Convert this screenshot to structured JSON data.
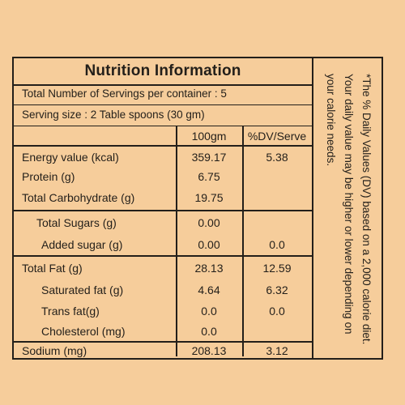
{
  "title": "Nutrition Information",
  "servings_line": "Total Number of Servings per container : 5",
  "serving_size_line": "Serving size :  2 Table spoons (30 gm)",
  "columns": {
    "per100": "100gm",
    "dv": "%DV/Serve"
  },
  "rows": [
    {
      "label": "Energy value (kcal)",
      "per100": "359.17",
      "dv": "5.38"
    },
    {
      "label": "Protein (g)",
      "per100": "6.75",
      "dv": ""
    },
    {
      "label": "Total Carbohydrate (g)",
      "per100": "19.75",
      "dv": ""
    },
    {
      "label": "Total Sugars (g)",
      "per100": "0.00",
      "dv": ""
    },
    {
      "label": "Added sugar (g)",
      "per100": "0.00",
      "dv": "0.0"
    },
    {
      "label": "Total Fat (g)",
      "per100": "28.13",
      "dv": "12.59"
    },
    {
      "label": "Saturated fat (g)",
      "per100": "4.64",
      "dv": "6.32"
    },
    {
      "label": "Trans fat(g)",
      "per100": "0.0",
      "dv": "0.0"
    },
    {
      "label": "Cholesterol (mg)",
      "per100": "0.0",
      "dv": ""
    },
    {
      "label": "Sodium (mg)",
      "per100": "208.13",
      "dv": "3.12"
    }
  ],
  "footnote": "*The % Daily Values (DV) based on a 2,000 calorie diet. Your daily value may be higher or lower depending on your calorie needs.",
  "colors": {
    "background": "#f6cd9b",
    "ink": "#231f1a"
  }
}
